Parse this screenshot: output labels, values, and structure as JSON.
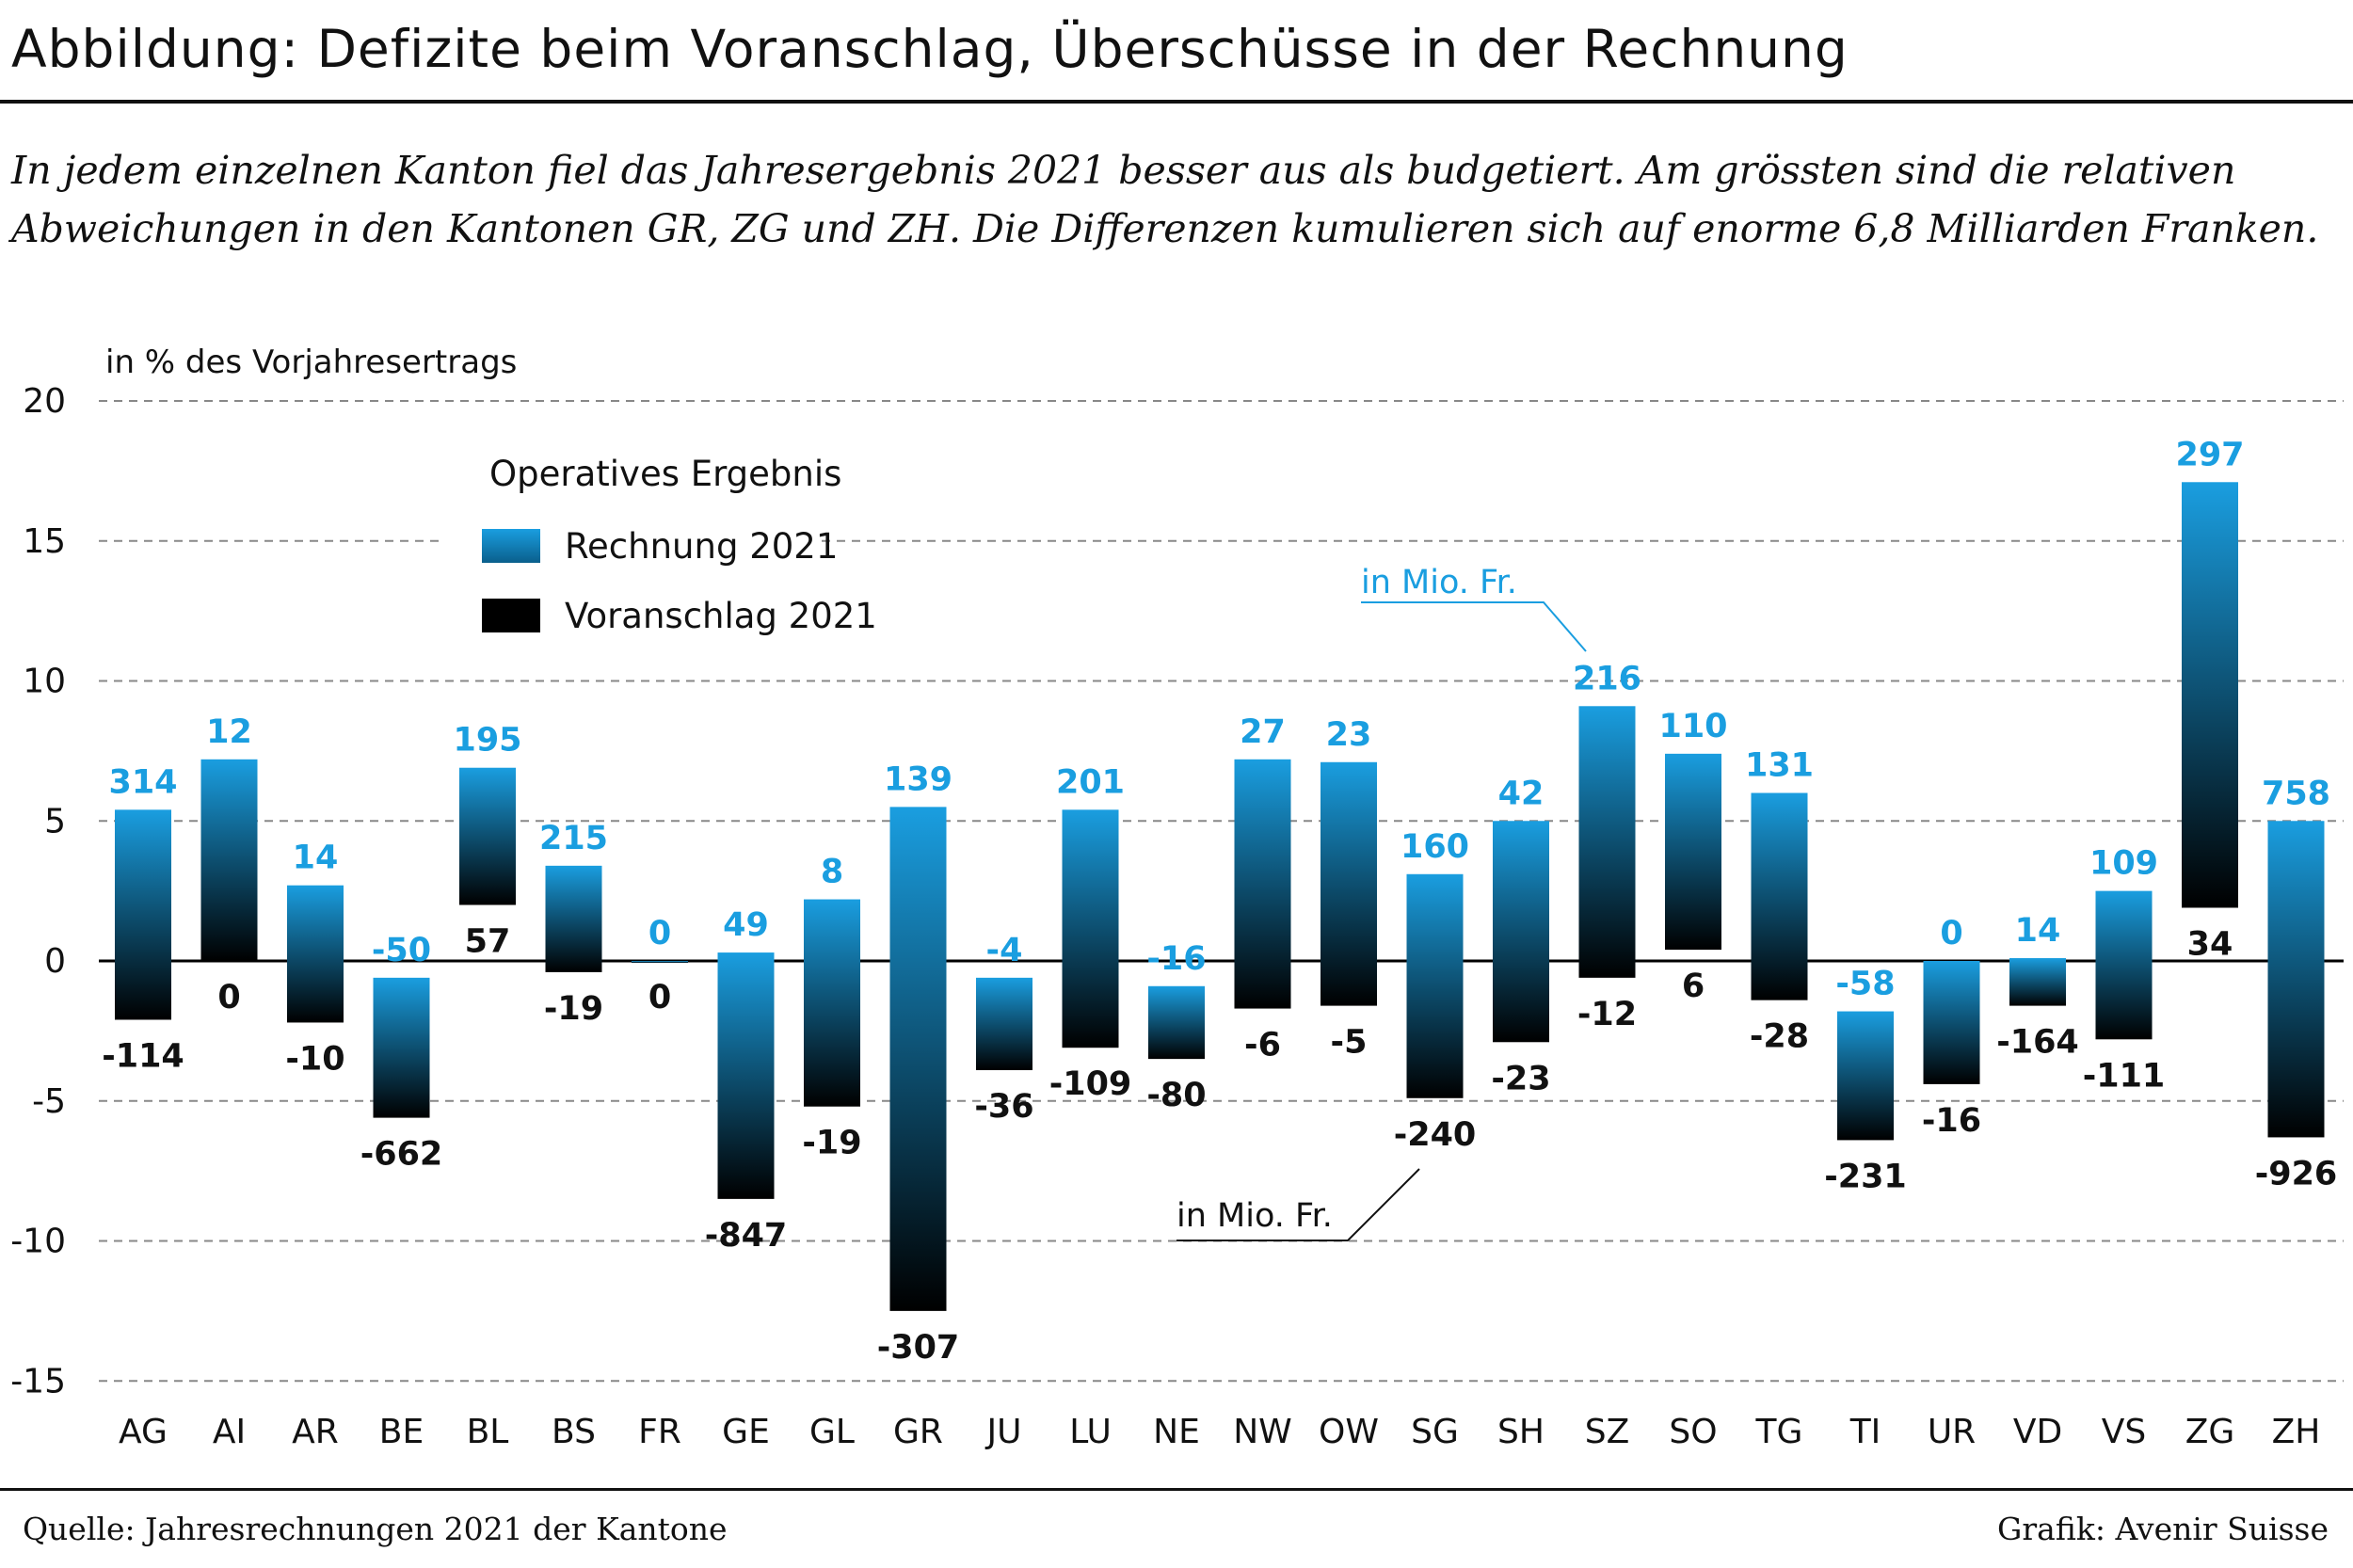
{
  "title": "Abbildung: Defizite beim Voranschlag, Überschüsse in der Rechnung",
  "subtitle": "In jedem einzelnen Kanton fiel das Jahresergebnis 2021 besser aus als budgetiert. Am grössten sind die relativen Abweichungen in den Kantonen GR, ZG und ZH. Die Differenzen kumulieren sich auf enorme 6,8 Milliarden Franken.",
  "source": "Quelle: Jahresrechnungen 2021 der Kantone",
  "credit": "Grafik: Avenir Suisse",
  "colors": {
    "rechnung": "#1a9ee0",
    "voranschlag": "#000000",
    "grid": "#888888"
  },
  "chart_data": {
    "type": "bar",
    "ylabel": "in % des Vorjahresertrags",
    "ylim": [
      -15,
      20
    ],
    "yticks": [
      "20",
      "15",
      "10",
      "5",
      "0",
      "-5",
      "-10",
      "-15"
    ],
    "grid": "horizontal dashed",
    "legend": {
      "title": "Operatives Ergebnis",
      "entries": [
        "Rechnung 2021",
        "Voranschlag 2021"
      ],
      "placement": "top-left"
    },
    "annotations": [
      "in Mio. Fr.",
      "in Mio. Fr."
    ],
    "categories": [
      "AG",
      "AI",
      "AR",
      "BE",
      "BL",
      "BS",
      "FR",
      "GE",
      "GL",
      "GR",
      "JU",
      "LU",
      "NE",
      "NW",
      "OW",
      "SG",
      "SH",
      "SZ",
      "SO",
      "TG",
      "TI",
      "UR",
      "VD",
      "VS",
      "ZG",
      "ZH"
    ],
    "series": [
      {
        "name": "Rechnung 2021",
        "values_pct": [
          5.4,
          7.2,
          2.7,
          -0.6,
          6.9,
          3.4,
          0,
          0.3,
          2.2,
          5.5,
          -0.6,
          5.4,
          -0.9,
          7.2,
          7.1,
          3.1,
          5.0,
          9.1,
          7.4,
          6.0,
          -1.8,
          0,
          0.1,
          2.5,
          17.1,
          5.0
        ],
        "labels_mio": [
          "314",
          "12",
          "14",
          "-50",
          "195",
          "215",
          "0",
          "49",
          "8",
          "139",
          "-4",
          "201",
          "-16",
          "27",
          "23",
          "160",
          "42",
          "216",
          "110",
          "131",
          "-58",
          "0",
          "14",
          "109",
          "297",
          "758"
        ]
      },
      {
        "name": "Voranschlag 2021",
        "values_pct": [
          -2.1,
          0,
          -2.2,
          -5.6,
          2.0,
          -0.4,
          0,
          -8.5,
          -5.2,
          -12.5,
          -3.9,
          -3.1,
          -3.5,
          -1.7,
          -1.6,
          -4.9,
          -2.9,
          -0.6,
          0.4,
          -1.4,
          -6.4,
          -4.4,
          -1.6,
          -2.8,
          1.9,
          -6.3
        ],
        "labels_mio": [
          "-114",
          "0",
          "-10",
          "-662",
          "57",
          "-19",
          "0",
          "-847",
          "-19",
          "-307",
          "-36",
          "-109",
          "-80",
          "-6",
          "-5",
          "-240",
          "-23",
          "-12",
          "6",
          "-28",
          "-231",
          "-16",
          "-164",
          "-111",
          "34",
          "-926"
        ]
      }
    ]
  }
}
